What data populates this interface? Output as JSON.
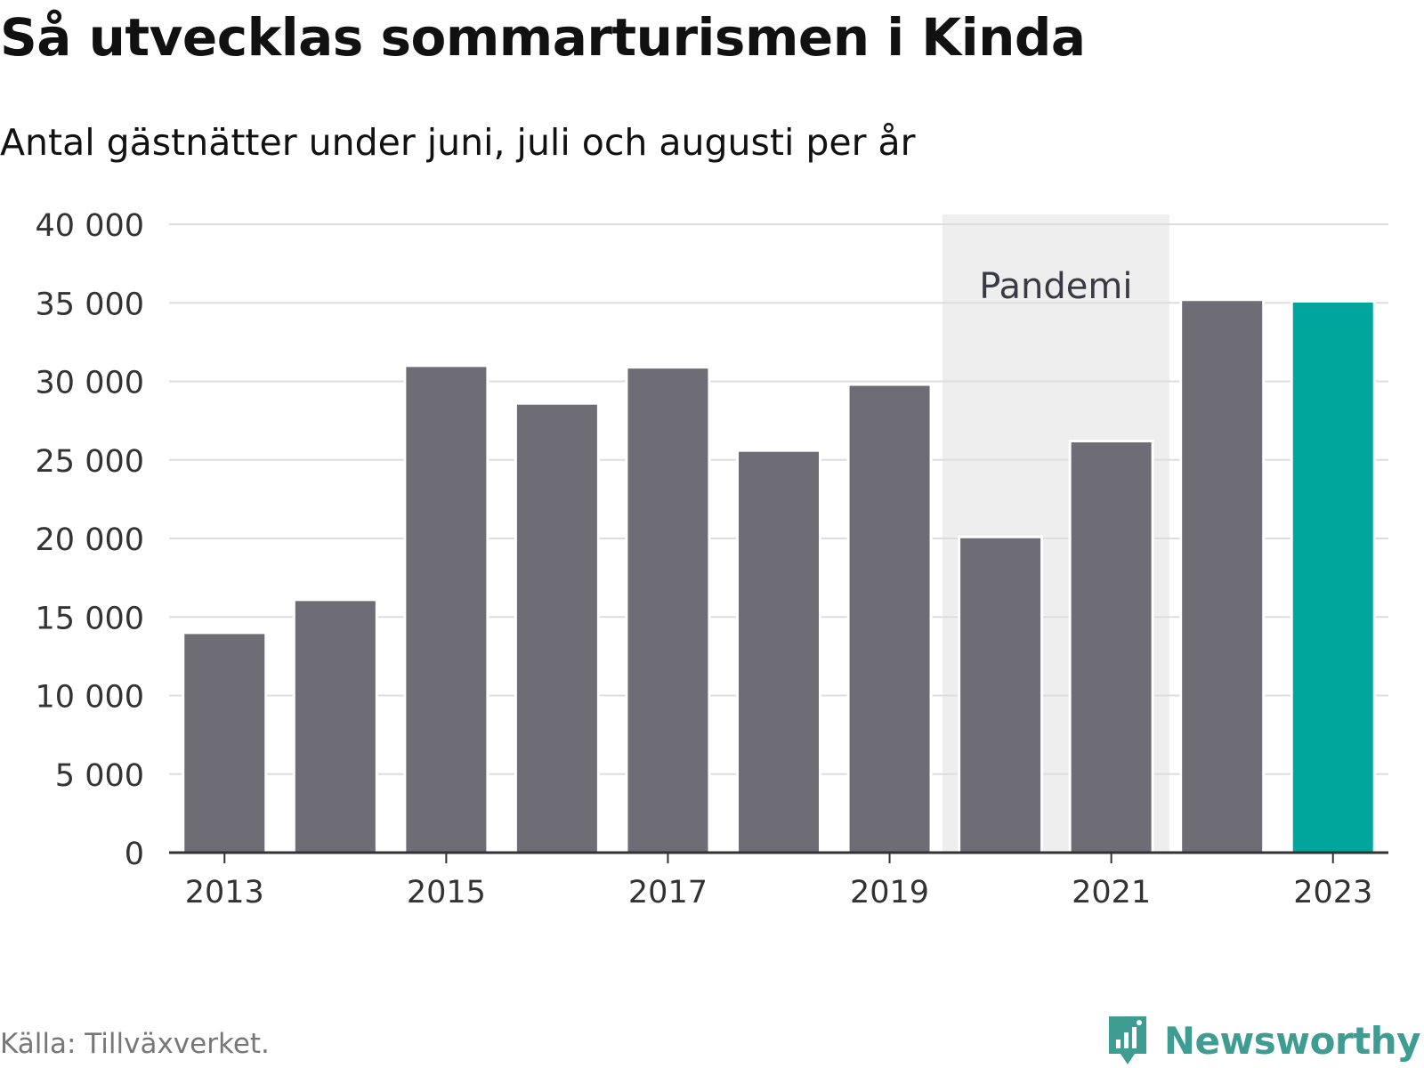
{
  "title": "Så utvecklas sommarturismen i Kinda",
  "subtitle": "Antal gästnätter under juni, juli och augusti per år",
  "source": "Källa: Tillväxverket.",
  "brand": "Newsworthy",
  "colors": {
    "bar": "#6e6d75",
    "highlight": "#00a59b",
    "shade": "#eeeeee",
    "grid": "#dddddd",
    "brand": "#3e9c93"
  },
  "chart_data": {
    "type": "bar",
    "categories": [
      "2013",
      "2014",
      "2015",
      "2016",
      "2017",
      "2018",
      "2019",
      "2020",
      "2021",
      "2022",
      "2023"
    ],
    "values": [
      14000,
      16100,
      31000,
      28600,
      30900,
      25600,
      29800,
      20100,
      26200,
      35200,
      35100
    ],
    "highlight_category": "2023",
    "ylim": [
      0,
      40000
    ],
    "yticks": [
      0,
      5000,
      10000,
      15000,
      20000,
      25000,
      30000,
      35000,
      40000
    ],
    "ytick_labels": [
      "0",
      "5 000",
      "10 000",
      "15 000",
      "20 000",
      "25 000",
      "30 000",
      "35 000",
      "40 000"
    ],
    "xtick_labels": [
      "2013",
      "2015",
      "2017",
      "2019",
      "2021",
      "2023"
    ],
    "annotation": {
      "label": "Pandemi",
      "from": "2020",
      "to": "2021"
    },
    "grid": true,
    "legend": "none"
  }
}
